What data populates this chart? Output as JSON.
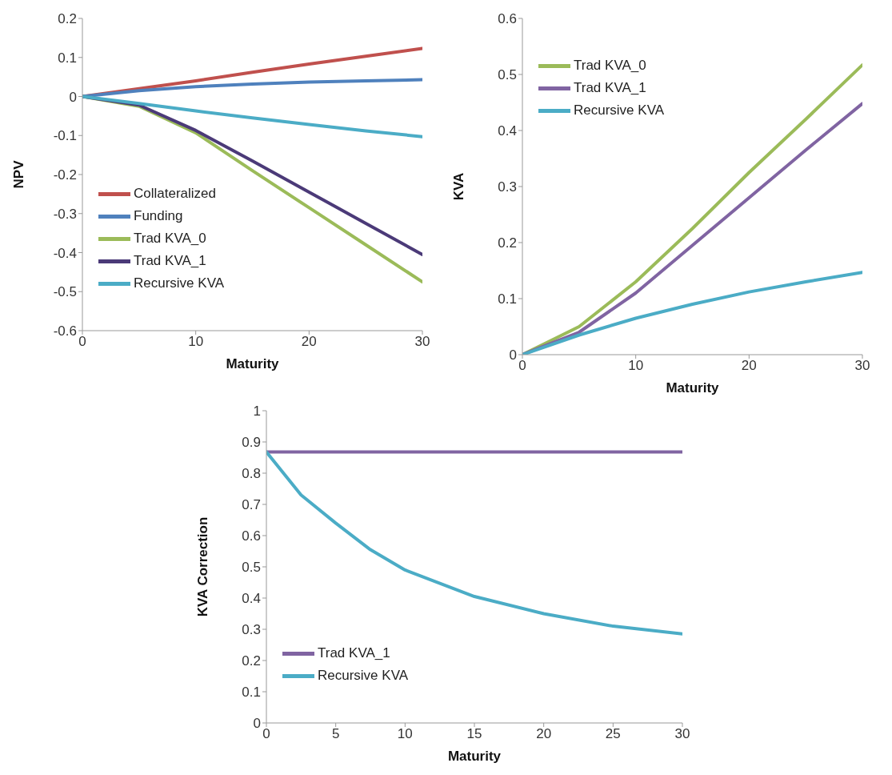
{
  "chart_data": [
    {
      "type": "line",
      "ylabel": "NPV",
      "xlabel": "Maturity",
      "x": [
        0,
        5,
        10,
        15,
        20,
        25,
        30
      ],
      "xlim": [
        0,
        30
      ],
      "xticks": [
        0,
        10,
        20,
        30
      ],
      "ylim": [
        -0.6,
        0.2
      ],
      "yticks": [
        -0.6,
        -0.5,
        -0.4,
        -0.3,
        -0.2,
        -0.1,
        0,
        0.1,
        0.2
      ],
      "grid": false,
      "legend": "bottom left",
      "marker": "none",
      "line_style": "solid",
      "series": [
        {
          "name": "Collateralized",
          "color": "#c0504d",
          "values": [
            0,
            0.02,
            0.04,
            0.062,
            0.083,
            0.103,
            0.123
          ]
        },
        {
          "name": "Funding",
          "color": "#4f81bd",
          "values": [
            0,
            0.015,
            0.025,
            0.032,
            0.037,
            0.04,
            0.043
          ]
        },
        {
          "name": "Trad KVA_0",
          "color": "#9bbb59",
          "values": [
            0,
            -0.025,
            -0.093,
            -0.19,
            -0.285,
            -0.38,
            -0.475
          ]
        },
        {
          "name": "Trad KVA_1",
          "color": "#4b3a78",
          "values": [
            0,
            -0.022,
            -0.087,
            -0.165,
            -0.245,
            -0.325,
            -0.405
          ]
        },
        {
          "name": "Recursive KVA",
          "color": "#4bacc6",
          "values": [
            0,
            -0.018,
            -0.037,
            -0.055,
            -0.072,
            -0.088,
            -0.103
          ]
        }
      ]
    },
    {
      "type": "line",
      "ylabel": "KVA",
      "xlabel": "Maturity",
      "x": [
        0,
        5,
        10,
        15,
        20,
        25,
        30
      ],
      "xlim": [
        0,
        30
      ],
      "xticks": [
        0,
        10,
        20,
        30
      ],
      "ylim": [
        0,
        0.6
      ],
      "yticks": [
        0,
        0.1,
        0.2,
        0.3,
        0.4,
        0.5,
        0.6
      ],
      "grid": false,
      "legend": "top left",
      "marker": "none",
      "line_style": "solid",
      "series": [
        {
          "name": "Trad KVA_0",
          "color": "#9bbb59",
          "values": [
            0,
            0.05,
            0.13,
            0.225,
            0.325,
            0.42,
            0.517
          ]
        },
        {
          "name": "Trad KVA_1",
          "color": "#8064a2",
          "values": [
            0,
            0.04,
            0.11,
            0.195,
            0.28,
            0.365,
            0.448
          ]
        },
        {
          "name": "Recursive KVA",
          "color": "#4bacc6",
          "values": [
            0,
            0.035,
            0.065,
            0.09,
            0.112,
            0.13,
            0.147
          ]
        }
      ]
    },
    {
      "type": "line",
      "ylabel": "KVA Correction",
      "xlabel": "Maturity",
      "x": [
        0,
        2.5,
        5,
        7.5,
        10,
        15,
        20,
        25,
        30
      ],
      "xlim": [
        0,
        30
      ],
      "xticks": [
        0,
        5,
        10,
        15,
        20,
        25,
        30
      ],
      "ylim": [
        0,
        1
      ],
      "yticks": [
        0,
        0.1,
        0.2,
        0.3,
        0.4,
        0.5,
        0.6,
        0.7,
        0.8,
        0.9,
        1
      ],
      "grid": false,
      "legend": "bottom left",
      "marker": "none",
      "line_style": "solid",
      "series": [
        {
          "name": "Trad KVA_1",
          "color": "#8064a2",
          "values": [
            0.868,
            0.868,
            0.868,
            0.868,
            0.868,
            0.868,
            0.868,
            0.868,
            0.868
          ]
        },
        {
          "name": "Recursive KVA",
          "color": "#4bacc6",
          "values": [
            0.868,
            0.73,
            0.64,
            0.555,
            0.49,
            0.405,
            0.35,
            0.31,
            0.285
          ]
        }
      ]
    }
  ]
}
